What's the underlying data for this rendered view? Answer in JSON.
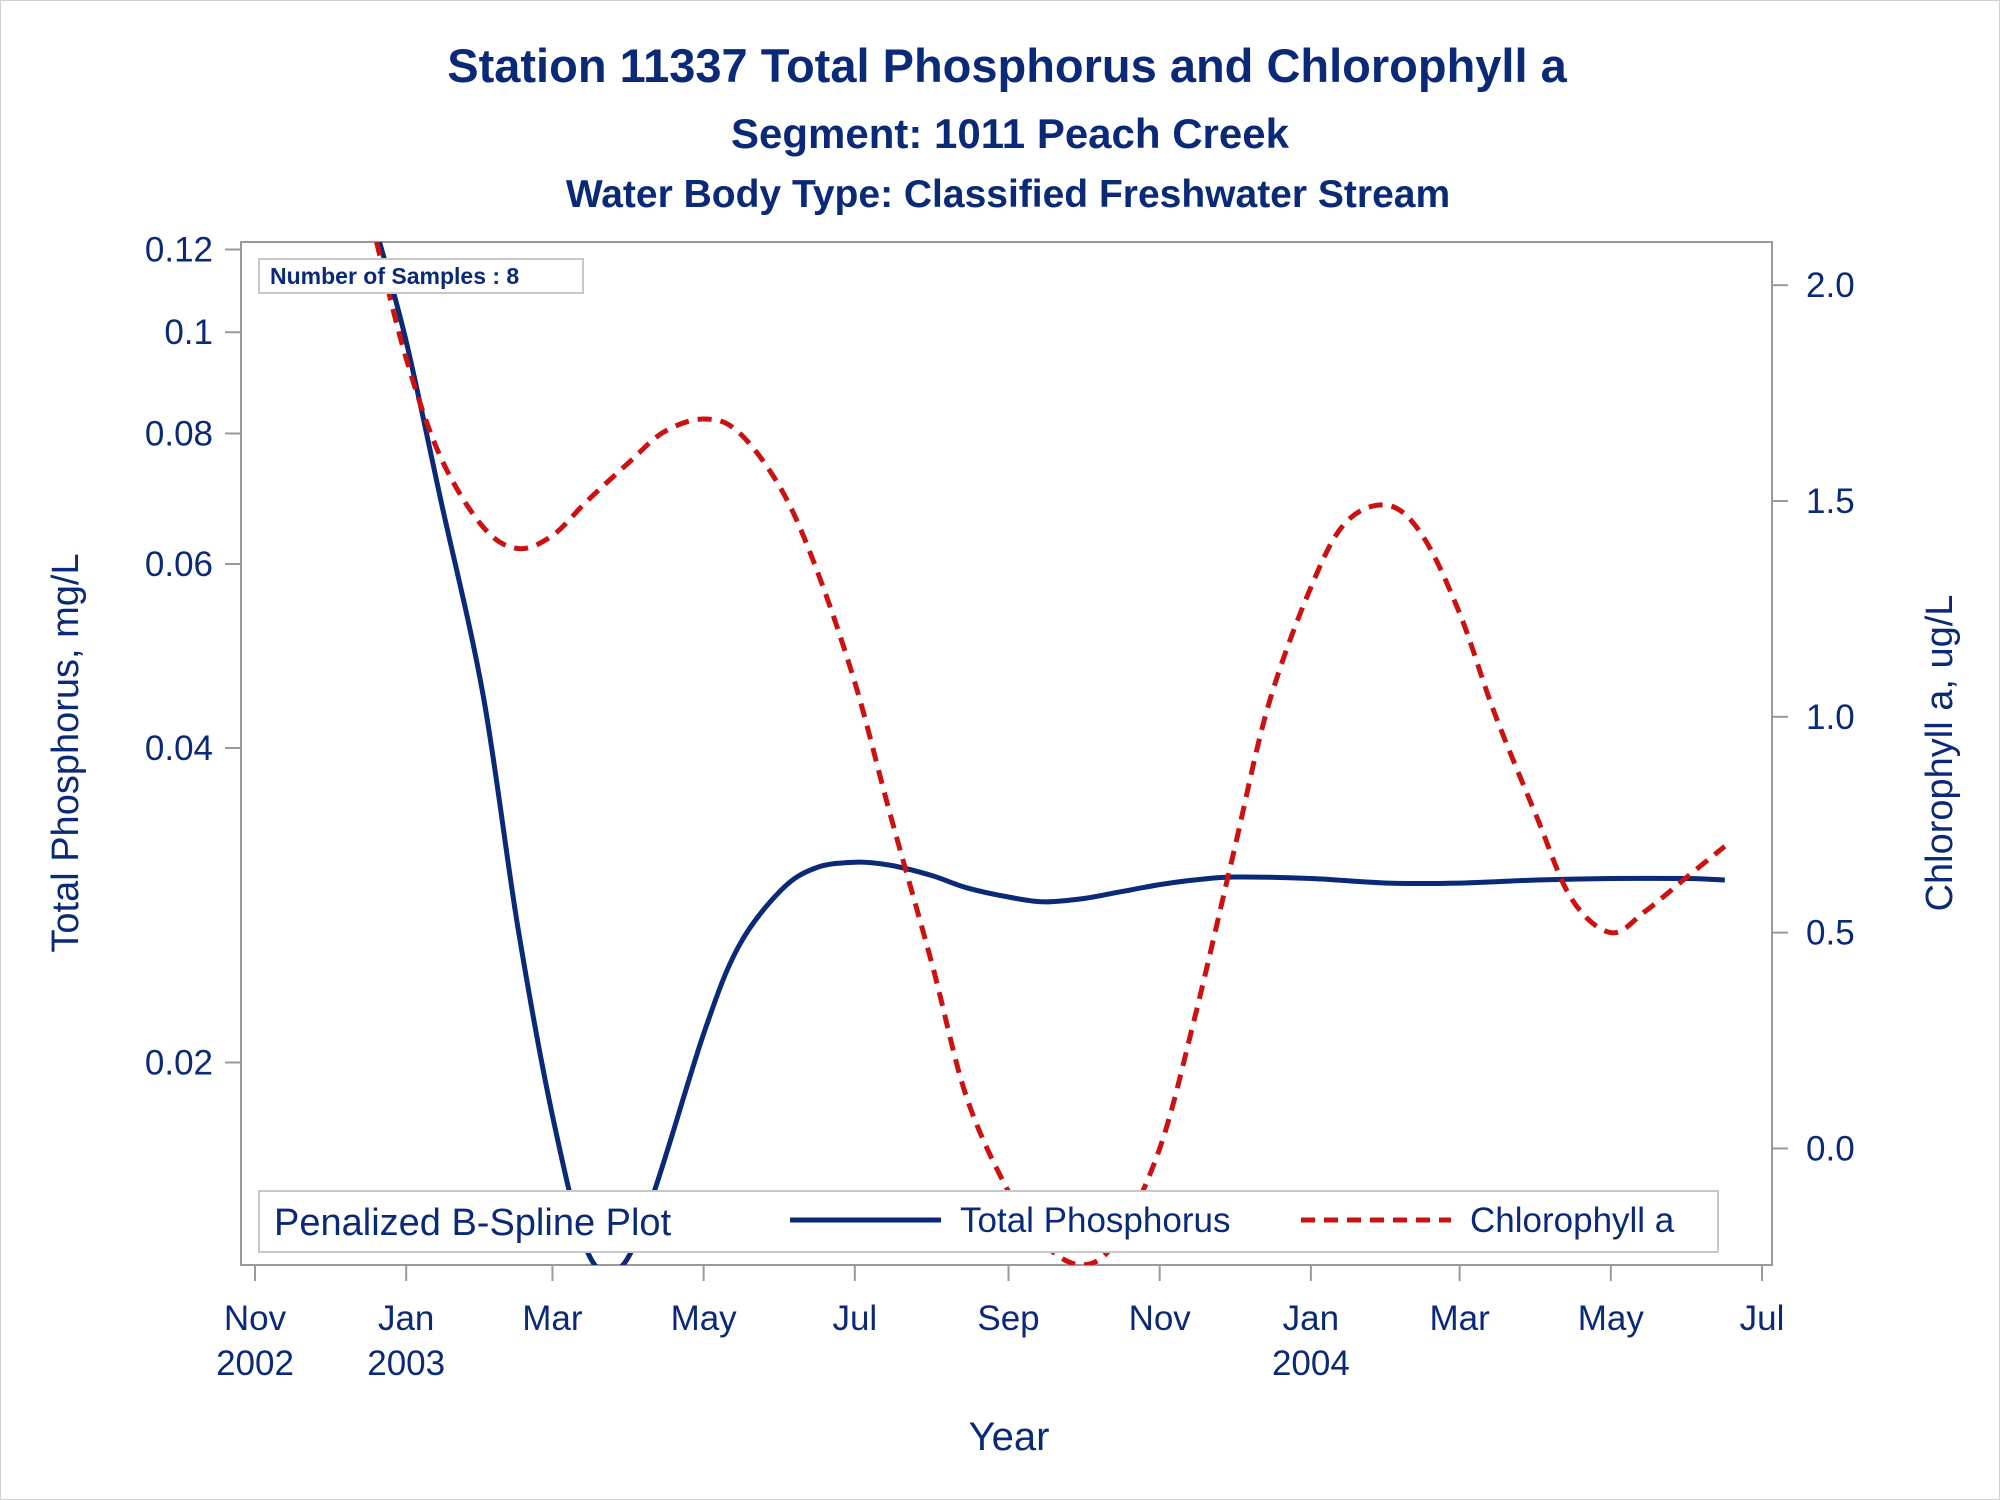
{
  "chart_data": {
    "type": "line",
    "title": "Station 11337  Total Phosphorus and Chlorophyll a",
    "subtitle1": "Segment: 1011  Peach Creek",
    "subtitle2": "Water Body Type: Classified Freshwater Stream",
    "xlabel": "Year",
    "ylabel_left": "Total Phosphorus, mg/L",
    "ylabel_right": "Chlorophyll a, ug/L",
    "inset_label": "Number of Samples : 8",
    "legend_title": "Penalized B-Spline Plot",
    "legend_position": "bottom-inside",
    "xlim": [
      "2002-11-01",
      "2004-07-01"
    ],
    "x_ticks": [
      {
        "date": "2002-11-01",
        "line1": "Nov",
        "line2": "2002"
      },
      {
        "date": "2003-01-01",
        "line1": "Jan",
        "line2": "2003"
      },
      {
        "date": "2003-03-01",
        "line1": "Mar",
        "line2": ""
      },
      {
        "date": "2003-05-01",
        "line1": "May",
        "line2": ""
      },
      {
        "date": "2003-07-01",
        "line1": "Jul",
        "line2": ""
      },
      {
        "date": "2003-09-01",
        "line1": "Sep",
        "line2": ""
      },
      {
        "date": "2003-11-01",
        "line1": "Nov",
        "line2": ""
      },
      {
        "date": "2004-01-01",
        "line1": "Jan",
        "line2": "2004"
      },
      {
        "date": "2004-03-01",
        "line1": "Mar",
        "line2": ""
      },
      {
        "date": "2004-05-01",
        "line1": "May",
        "line2": ""
      },
      {
        "date": "2004-07-01",
        "line1": "Jul",
        "line2": ""
      }
    ],
    "y_left": {
      "scale": "log",
      "range": [
        0.0128,
        0.122
      ],
      "ticks": [
        0.02,
        0.04,
        0.06,
        0.08,
        0.1,
        0.12
      ],
      "tick_labels": [
        "0.02",
        "0.04",
        "0.06",
        "0.08",
        "0.1",
        "0.12"
      ]
    },
    "y_right": {
      "scale": "linear",
      "range": [
        -0.27,
        2.1
      ],
      "ticks": [
        0.0,
        0.5,
        1.0,
        1.5,
        2.0
      ],
      "tick_labels": [
        "0.0",
        "0.5",
        "1.0",
        "1.5",
        "2.0"
      ]
    },
    "series": [
      {
        "name": "Total Phosphorus",
        "axis": "left",
        "color": "#0a2a78",
        "dash": "solid",
        "points": [
          [
            "2002-12-20",
            0.125
          ],
          [
            "2003-01-01",
            0.098
          ],
          [
            "2003-01-15",
            0.069
          ],
          [
            "2003-02-01",
            0.045
          ],
          [
            "2003-02-15",
            0.027
          ],
          [
            "2003-03-01",
            0.0178
          ],
          [
            "2003-03-15",
            0.0132
          ],
          [
            "2003-03-28",
            0.0127
          ],
          [
            "2003-04-10",
            0.0148
          ],
          [
            "2003-05-01",
            0.0213
          ],
          [
            "2003-05-15",
            0.0258
          ],
          [
            "2003-06-01",
            0.0292
          ],
          [
            "2003-06-15",
            0.0307
          ],
          [
            "2003-07-01",
            0.0311
          ],
          [
            "2003-07-15",
            0.0309
          ],
          [
            "2003-08-01",
            0.0302
          ],
          [
            "2003-08-15",
            0.0294
          ],
          [
            "2003-09-01",
            0.0288
          ],
          [
            "2003-09-15",
            0.0285
          ],
          [
            "2003-10-01",
            0.0287
          ],
          [
            "2003-10-15",
            0.0291
          ],
          [
            "2003-11-01",
            0.0296
          ],
          [
            "2003-11-15",
            0.0299
          ],
          [
            "2003-12-01",
            0.0301
          ],
          [
            "2004-01-01",
            0.03
          ],
          [
            "2004-02-01",
            0.0297
          ],
          [
            "2004-03-01",
            0.0297
          ],
          [
            "2004-04-01",
            0.0299
          ],
          [
            "2004-05-01",
            0.03
          ],
          [
            "2004-06-01",
            0.03
          ],
          [
            "2004-06-16",
            0.0299
          ]
        ]
      },
      {
        "name": "Chlorophyll a",
        "axis": "right",
        "color": "#cc1111",
        "dash": "dashed",
        "points": [
          [
            "2002-12-20",
            2.1
          ],
          [
            "2003-01-01",
            1.83
          ],
          [
            "2003-01-15",
            1.6
          ],
          [
            "2003-02-01",
            1.44
          ],
          [
            "2003-02-15",
            1.39
          ],
          [
            "2003-03-01",
            1.42
          ],
          [
            "2003-03-15",
            1.5
          ],
          [
            "2003-04-01",
            1.59
          ],
          [
            "2003-04-15",
            1.66
          ],
          [
            "2003-05-01",
            1.69
          ],
          [
            "2003-05-15",
            1.66
          ],
          [
            "2003-06-01",
            1.53
          ],
          [
            "2003-06-15",
            1.35
          ],
          [
            "2003-07-01",
            1.08
          ],
          [
            "2003-07-15",
            0.78
          ],
          [
            "2003-08-01",
            0.43
          ],
          [
            "2003-08-15",
            0.12
          ],
          [
            "2003-09-01",
            -0.1
          ],
          [
            "2003-09-15",
            -0.22
          ],
          [
            "2003-10-01",
            -0.27
          ],
          [
            "2003-10-15",
            -0.21
          ],
          [
            "2003-11-01",
            0.0
          ],
          [
            "2003-11-15",
            0.3
          ],
          [
            "2003-12-01",
            0.69
          ],
          [
            "2003-12-15",
            1.03
          ],
          [
            "2004-01-01",
            1.3
          ],
          [
            "2004-01-15",
            1.45
          ],
          [
            "2004-02-01",
            1.49
          ],
          [
            "2004-02-15",
            1.42
          ],
          [
            "2004-03-01",
            1.24
          ],
          [
            "2004-03-15",
            1.01
          ],
          [
            "2004-04-01",
            0.77
          ],
          [
            "2004-04-15",
            0.58
          ],
          [
            "2004-05-01",
            0.5
          ],
          [
            "2004-05-15",
            0.55
          ],
          [
            "2004-06-01",
            0.63
          ],
          [
            "2004-06-16",
            0.7
          ]
        ]
      }
    ]
  }
}
